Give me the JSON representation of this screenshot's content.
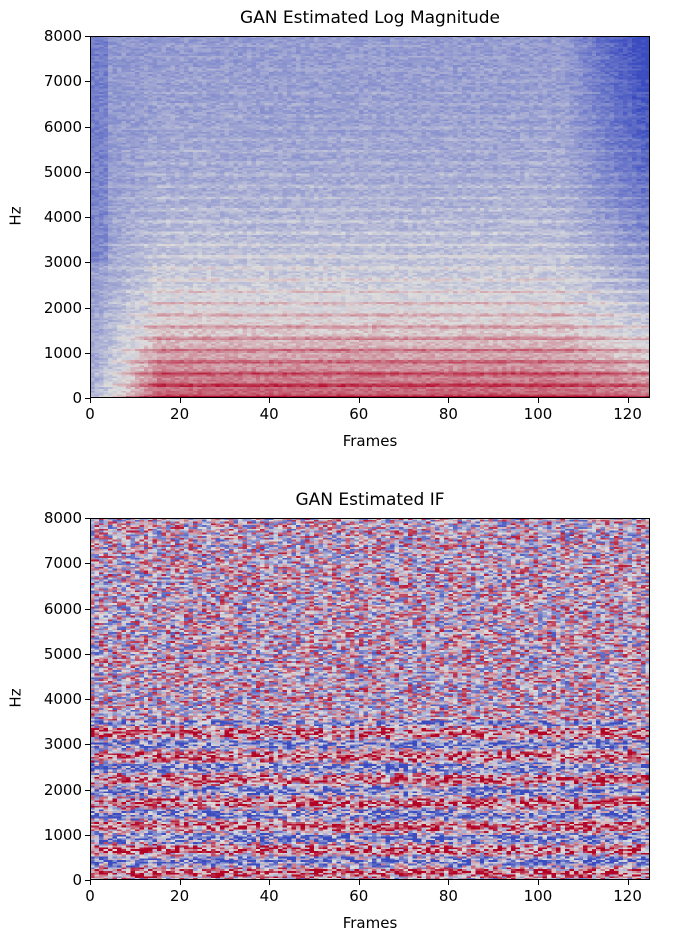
{
  "chart_data": [
    {
      "type": "heatmap",
      "title": "GAN Estimated Log Magnitude",
      "xlabel": "Frames",
      "ylabel": "Hz",
      "xlim": [
        0,
        125
      ],
      "ylim": [
        0,
        8000
      ],
      "xticks": [
        "0",
        "20",
        "40",
        "60",
        "80",
        "100",
        "120"
      ],
      "yticks": [
        "0",
        "1000",
        "2000",
        "3000",
        "4000",
        "5000",
        "6000",
        "7000",
        "8000"
      ],
      "colormap": "coolwarm",
      "description_values": {
        "harmonic_spacing_hz": 130,
        "high_energy_band_hz": [
          0,
          1800
        ],
        "moderate_energy_band_hz": [
          1800,
          3500
        ],
        "low_energy_band_hz": [
          3500,
          8000
        ]
      }
    },
    {
      "type": "heatmap",
      "title": "GAN Estimated IF",
      "xlabel": "Frames",
      "ylabel": "Hz",
      "xlim": [
        0,
        125
      ],
      "ylim": [
        0,
        8000
      ],
      "xticks": [
        "0",
        "20",
        "40",
        "60",
        "80",
        "100",
        "120"
      ],
      "yticks": [
        "0",
        "1000",
        "2000",
        "3000",
        "4000",
        "5000",
        "6000",
        "7000",
        "8000"
      ],
      "colormap": "coolwarm"
    }
  ],
  "colors": {
    "low": "#3b4cc0",
    "mid": "#dddddd",
    "high": "#b40426"
  }
}
